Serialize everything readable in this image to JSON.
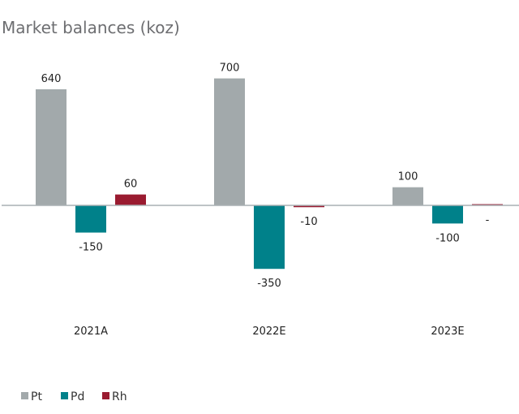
{
  "chart_data": {
    "type": "bar",
    "title": "Market balances (koz)",
    "categories": [
      "2021A",
      "2022E",
      "2023E"
    ],
    "series": [
      {
        "name": "Pt",
        "color": "#a2a9ab",
        "values": [
          640,
          700,
          100
        ],
        "labels": [
          "640",
          "700",
          "100"
        ]
      },
      {
        "name": "Pd",
        "color": "#00818a",
        "values": [
          -150,
          -350,
          -100
        ],
        "labels": [
          "-150",
          "-350",
          "-100"
        ]
      },
      {
        "name": "Rh",
        "color": "#9a1b30",
        "values": [
          60,
          -10,
          0
        ],
        "labels": [
          "60",
          "-10",
          "-"
        ]
      }
    ],
    "axis_color": "#a9b0b3",
    "legend_position": "bottom-left",
    "grid": false
  }
}
